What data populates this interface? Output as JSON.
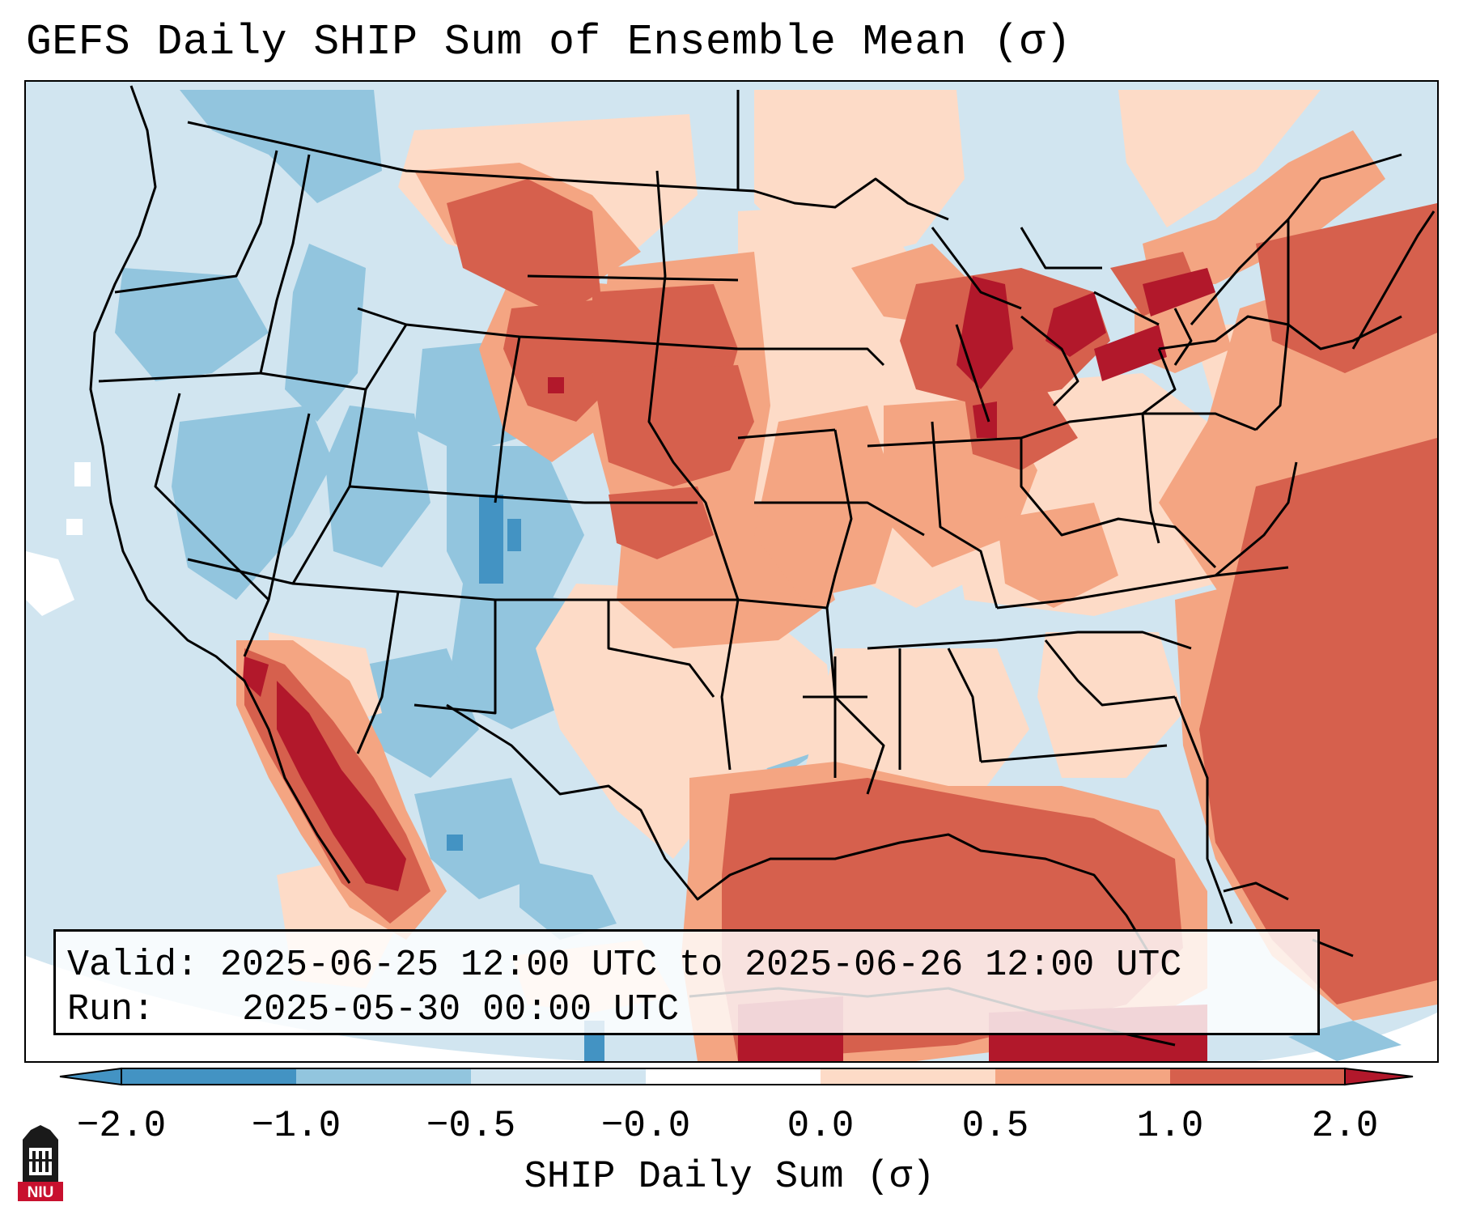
{
  "title": "GEFS Daily SHIP Sum of Ensemble Mean (σ)",
  "info": {
    "valid_label": "Valid:",
    "valid_value": "2025-06-25 12:00 UTC to 2025-06-26 12:00 UTC",
    "run_label": "Run:",
    "run_value": "2025-05-30 00:00 UTC"
  },
  "colorbar": {
    "label": "SHIP Daily Sum (σ)",
    "tick_labels": [
      "−2.0",
      "−1.0",
      "−0.5",
      "−0.0",
      "0.0",
      "0.5",
      "1.0",
      "2.0"
    ],
    "bins": [
      {
        "from": -2.0,
        "to": -1.0,
        "color": "#92c5de"
      },
      {
        "from": -1.0,
        "to": -0.5,
        "color": "#92c5de"
      },
      {
        "from": -0.5,
        "to": -0.0,
        "color": "#d1e5f0"
      },
      {
        "from": -0.0,
        "to": 0.0,
        "color": "#ffffff"
      },
      {
        "from": 0.0,
        "to": 0.5,
        "color": "#fddbc7"
      },
      {
        "from": 0.5,
        "to": 1.0,
        "color": "#f4a582"
      },
      {
        "from": 1.0,
        "to": 2.0,
        "color": "#d6604d"
      }
    ],
    "under_color": "#4393c3",
    "over_color": "#b2182b",
    "seg0_color": "#4393c3"
  },
  "palette": {
    "neg_strong": "#4393c3",
    "neg_mid": "#92c5de",
    "neg_weak": "#d1e5f0",
    "pos_weak": "#fddbc7",
    "pos_mid": "#f4a582",
    "pos_strong": "#d6604d",
    "pos_extreme": "#b2182b"
  },
  "logo": {
    "text": "NIU"
  }
}
